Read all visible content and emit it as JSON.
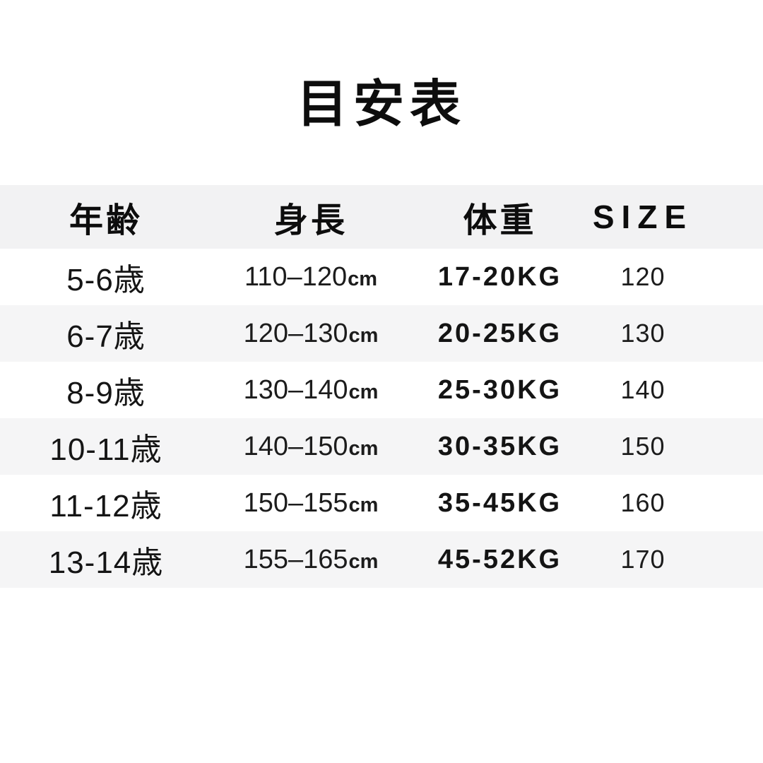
{
  "title": "目安表",
  "chart_data": {
    "type": "table",
    "title": "目安表",
    "columns": [
      "年齢",
      "身長",
      "体重",
      "SIZE"
    ],
    "rows": [
      [
        "5-6歳",
        "110–120cm",
        "17-20KG",
        "120"
      ],
      [
        "6-7歳",
        "120–130cm",
        "20-25KG",
        "130"
      ],
      [
        "8-9歳",
        "130–140cm",
        "25-30KG",
        "140"
      ],
      [
        "10-11歳",
        "140–150cm",
        "30-35KG",
        "150"
      ],
      [
        "11-12歳",
        "150–155cm",
        "35-45KG",
        "160"
      ],
      [
        "13-14歳",
        "155–165cm",
        "45-52KG",
        "170"
      ]
    ],
    "layout": {
      "striped": true,
      "stripe_color": "#f4f4f5",
      "grid": false
    }
  },
  "table": {
    "headers": {
      "age": "年齢",
      "height": "身長",
      "weight": "体重",
      "size": "SIZE"
    },
    "rows": [
      {
        "age": "5-6歳",
        "height": "110–120",
        "height_unit": "cm",
        "weight": "17-20KG",
        "size": "120"
      },
      {
        "age": "6-7歳",
        "height": "120–130",
        "height_unit": "cm",
        "weight": "20-25KG",
        "size": "130"
      },
      {
        "age": "8-9歳",
        "height": "130–140",
        "height_unit": "cm",
        "weight": "25-30KG",
        "size": "140"
      },
      {
        "age": "10-11歳",
        "height": "140–150",
        "height_unit": "cm",
        "weight": "30-35KG",
        "size": "150"
      },
      {
        "age": "11-12歳",
        "height": "150–155",
        "height_unit": "cm",
        "weight": "35-45KG",
        "size": "160"
      },
      {
        "age": "13-14歳",
        "height": "155–165",
        "height_unit": "cm",
        "weight": "45-52KG",
        "size": "170"
      }
    ]
  },
  "colors": {
    "background": "#ffffff",
    "header_stripe": "#f2f2f3",
    "row_stripe": "#f5f5f6",
    "text": "#111111"
  }
}
